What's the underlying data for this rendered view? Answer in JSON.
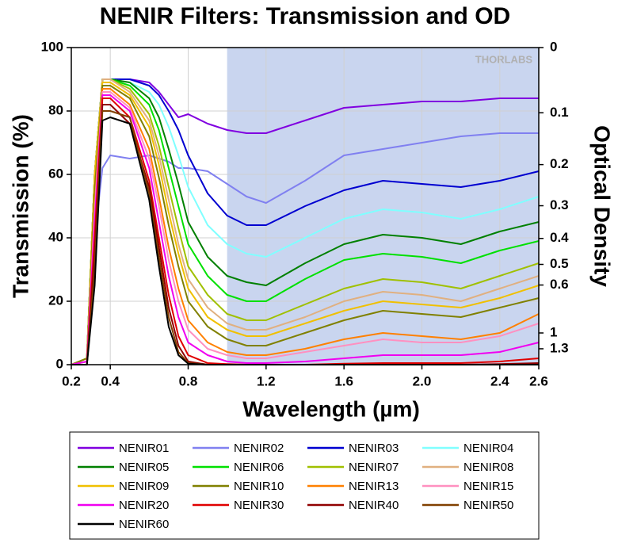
{
  "chart_data": {
    "type": "line",
    "title": "NENIR Filters: Transmission and OD",
    "xlabel": "Wavelength (µm)",
    "ylabel": "Transmission (%)",
    "y2label": "Optical Density",
    "watermark": "THORLABS",
    "xlim": [
      0.2,
      2.6
    ],
    "ylim": [
      0,
      100
    ],
    "xticks": [
      0.2,
      0.4,
      0.8,
      1.2,
      1.6,
      {
        "value": 2,
        "label": "2.0"
      },
      2.4,
      2.6
    ],
    "yticks": [
      0,
      20,
      40,
      60,
      80,
      100
    ],
    "y2_transform": "optical_density",
    "y2ticks": [
      0,
      0.1,
      0.2,
      0.3,
      0.4,
      0.5,
      0.6,
      1,
      1.3
    ],
    "grid": true,
    "highlight_region": {
      "x": [
        1.0,
        2.6
      ],
      "color": "#c9d5ef"
    },
    "x": [
      0.2,
      0.28,
      0.32,
      0.36,
      0.4,
      0.5,
      0.6,
      0.65,
      0.7,
      0.75,
      0.8,
      0.9,
      1.0,
      1.1,
      1.2,
      1.4,
      1.6,
      1.8,
      2.0,
      2.2,
      2.4,
      2.6
    ],
    "series": [
      {
        "name": "NENIR01",
        "color": "#8000e0",
        "values": [
          0,
          2,
          60,
          90,
          90,
          90,
          89,
          86,
          82,
          78,
          79,
          76,
          74,
          73,
          73,
          77,
          81,
          82,
          83,
          83,
          84,
          84
        ]
      },
      {
        "name": "NENIR02",
        "color": "#8080f0",
        "values": [
          0,
          1,
          40,
          62,
          66,
          65,
          66,
          65,
          64,
          62,
          62,
          61,
          57,
          53,
          51,
          58,
          66,
          68,
          70,
          72,
          73,
          73
        ]
      },
      {
        "name": "NENIR03",
        "color": "#0000d0",
        "values": [
          0,
          2,
          60,
          90,
          90,
          90,
          88,
          85,
          80,
          74,
          66,
          54,
          47,
          44,
          44,
          50,
          55,
          58,
          57,
          56,
          58,
          61
        ]
      },
      {
        "name": "NENIR04",
        "color": "#80ffff",
        "values": [
          0,
          2,
          60,
          90,
          90,
          89,
          86,
          82,
          75,
          66,
          56,
          44,
          38,
          35,
          34,
          40,
          46,
          49,
          48,
          46,
          49,
          53
        ]
      },
      {
        "name": "NENIR05",
        "color": "#008000",
        "values": [
          0,
          2,
          60,
          90,
          90,
          89,
          84,
          78,
          68,
          57,
          45,
          34,
          28,
          26,
          25,
          32,
          38,
          41,
          40,
          38,
          42,
          45
        ]
      },
      {
        "name": "NENIR06",
        "color": "#00e000",
        "values": [
          0,
          2,
          60,
          90,
          90,
          88,
          82,
          74,
          62,
          50,
          38,
          28,
          22,
          20,
          20,
          27,
          33,
          35,
          34,
          32,
          36,
          39
        ]
      },
      {
        "name": "NENIR07",
        "color": "#a0c000",
        "values": [
          0,
          2,
          60,
          90,
          90,
          87,
          79,
          69,
          56,
          43,
          31,
          22,
          16,
          14,
          14,
          19,
          24,
          27,
          26,
          24,
          28,
          32
        ]
      },
      {
        "name": "NENIR08",
        "color": "#e0b080",
        "values": [
          0,
          2,
          60,
          90,
          90,
          86,
          77,
          66,
          52,
          38,
          27,
          18,
          13,
          11,
          11,
          15,
          20,
          23,
          22,
          20,
          24,
          28
        ]
      },
      {
        "name": "NENIR09",
        "color": "#f0c000",
        "values": [
          0,
          2,
          60,
          89,
          89,
          85,
          75,
          63,
          48,
          35,
          24,
          15,
          11,
          9,
          9,
          13,
          17,
          20,
          19,
          18,
          21,
          25
        ]
      },
      {
        "name": "NENIR10",
        "color": "#808000",
        "values": [
          0,
          2,
          55,
          88,
          88,
          84,
          72,
          59,
          44,
          31,
          20,
          12,
          8,
          6,
          6,
          10,
          14,
          17,
          16,
          15,
          18,
          21
        ]
      },
      {
        "name": "NENIR13",
        "color": "#ff8000",
        "values": [
          0,
          1,
          50,
          87,
          87,
          82,
          68,
          53,
          37,
          24,
          14,
          7,
          4,
          3,
          3,
          5,
          8,
          10,
          9,
          8,
          10,
          16
        ]
      },
      {
        "name": "NENIR15",
        "color": "#ff90c0",
        "values": [
          0,
          1,
          48,
          86,
          86,
          81,
          65,
          50,
          33,
          20,
          11,
          5,
          3,
          2,
          2,
          4,
          6,
          8,
          7,
          7,
          9,
          13
        ]
      },
      {
        "name": "NENIR20",
        "color": "#f000f0",
        "values": [
          0,
          1,
          45,
          85,
          85,
          80,
          62,
          45,
          28,
          15,
          7,
          3,
          1,
          0.5,
          0.5,
          1,
          2,
          3,
          3,
          3,
          4,
          7
        ]
      },
      {
        "name": "NENIR30",
        "color": "#e00000",
        "values": [
          0,
          0,
          40,
          84,
          84,
          78,
          58,
          40,
          22,
          9,
          3,
          0.5,
          0.2,
          0,
          0,
          0,
          0.3,
          0.5,
          0.5,
          0.5,
          1,
          2
        ]
      },
      {
        "name": "NENIR40",
        "color": "#900000",
        "values": [
          0,
          0,
          35,
          82,
          82,
          76,
          56,
          37,
          18,
          6,
          1,
          0,
          0,
          0,
          0,
          0,
          0,
          0,
          0,
          0,
          0.2,
          0.5
        ]
      },
      {
        "name": "NENIR50",
        "color": "#804000",
        "values": [
          0,
          0,
          30,
          80,
          80,
          78,
          54,
          34,
          15,
          4,
          0.5,
          0,
          0,
          0,
          0,
          0,
          0,
          0,
          0,
          0,
          0,
          0
        ]
      },
      {
        "name": "NENIR60",
        "color": "#000000",
        "values": [
          0,
          0,
          25,
          77,
          78,
          76,
          52,
          31,
          12,
          3,
          0.3,
          0,
          0,
          0,
          0,
          0,
          0,
          0,
          0,
          0,
          0,
          0
        ]
      }
    ]
  }
}
